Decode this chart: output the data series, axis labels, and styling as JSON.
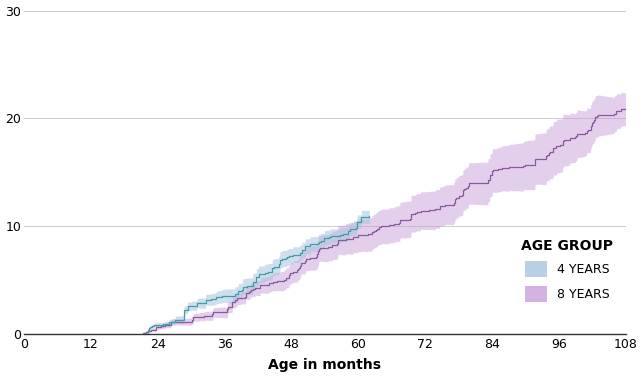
{
  "title": "",
  "xlabel": "Age in months",
  "ylabel": "",
  "xlim": [
    0,
    108
  ],
  "ylim": [
    0,
    30
  ],
  "xticks": [
    0,
    12,
    24,
    36,
    48,
    60,
    72,
    84,
    96,
    108
  ],
  "yticks": [
    0,
    10,
    20,
    30
  ],
  "color_4yr_line": "#3A9FA8",
  "color_4yr_fill": "#A8C4DD",
  "color_8yr_line": "#8B5A9E",
  "color_8yr_fill": "#C9A0D8",
  "legend_title": "AGE GROUP",
  "legend_entries": [
    "4 YEARS",
    "8 YEARS"
  ],
  "background_color": "#ffffff",
  "grid_color": "#cccccc",
  "figsize": [
    6.43,
    3.78
  ],
  "dpi": 100
}
